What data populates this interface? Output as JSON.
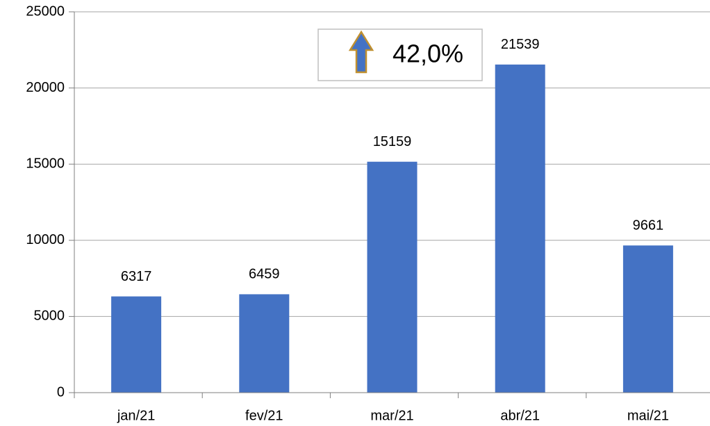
{
  "chart_data": {
    "type": "bar",
    "categories": [
      "jan/21",
      "fev/21",
      "mar/21",
      "abr/21",
      "mai/21"
    ],
    "values": [
      6317,
      6459,
      15159,
      21539,
      9661
    ],
    "color": "#4472c4",
    "ylim": [
      0,
      25000
    ],
    "yticks": [
      0,
      5000,
      10000,
      15000,
      20000,
      25000
    ],
    "grid": true,
    "annotation": "42,0%"
  }
}
